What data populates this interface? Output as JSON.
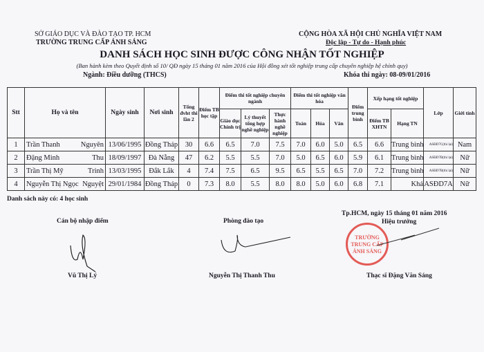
{
  "header": {
    "left_line1": "SỞ GIÁO DỤC VÀ ĐÀO TẠO TP. HCM",
    "left_line2": "TRƯỜNG TRUNG CẤP ÁNH SÁNG",
    "right_line1": "CỘNG HÒA XÃ HỘI CHỦ NGHĨA VIỆT NAM",
    "right_line2": "Độc lập - Tự do - Hạnh phúc"
  },
  "title": "DANH SÁCH HỌC SINH ĐƯỢC CÔNG NHẬN TỐT NGHIỆP",
  "subtitle": "(Ban hành kèm theo Quyết định số 10/ QĐ ngày 15 tháng 01 năm 2016 của Hội đồng xét tốt nghiệp trung cấp chuyên nghiệp hệ chính quy)",
  "major": "Ngành: Điều dưỡng (THCS)",
  "exam_date": "Khóa thi ngày: 08-09/01/2016",
  "table": {
    "headers": {
      "stt": "Stt",
      "name": "Họ và tên",
      "dob": "Ngày sinh",
      "pob": "Nơi sinh",
      "total": "Tổng đvht thi lần 2",
      "gpa": "Điểm TB học tập",
      "group_major": "Điểm thi tốt nghiệp chuyên ngành",
      "politics": "Giáo dục Chính trị",
      "theory": "Lý thuyết tổng hợp nghề nghiệp",
      "practice": "Thực hành nghề nghiệp",
      "group_culture": "Điểm thi tốt nghiệp văn hóa",
      "math": "Toán",
      "chem": "Hóa",
      "lit": "Văn",
      "avg": "Điểm trung bình",
      "group_rank": "Xếp hạng tốt nghiệp",
      "xhtn": "Điểm TB XHTN",
      "rank": "Hạng TN",
      "class": "Lớp",
      "gender": "Giới tính"
    },
    "rows": [
      {
        "stt": "1",
        "last": "Trần Thanh",
        "first": "Nguyên",
        "dob": "13/06/1995",
        "pob": "Đồng Tháp",
        "total": "30",
        "gpa": "6.6",
        "politics": "6.5",
        "theory": "7.0",
        "practice": "7.5",
        "math": "7.0",
        "chem": "6.0",
        "lit": "5.0",
        "avg": "6.5",
        "xhtn": "6.6",
        "rank": "Trung bình",
        "class": "ASĐD7C(thi lại)",
        "gender": "Nam"
      },
      {
        "stt": "2",
        "last": "Đặng Minh",
        "first": "Thu",
        "dob": "18/09/1997",
        "pob": "Đà Nẵng",
        "total": "47",
        "gpa": "6.2",
        "politics": "5.5",
        "theory": "5.5",
        "practice": "7.0",
        "math": "5.0",
        "chem": "6.5",
        "lit": "6.0",
        "avg": "5.9",
        "xhtn": "6.1",
        "rank": "Trung bình",
        "class": "ASĐD7B(thi lại)",
        "gender": "Nữ"
      },
      {
        "stt": "3",
        "last": "Trần Thị Mỹ",
        "first": "Trinh",
        "dob": "13/03/1995",
        "pob": "Đắk Lắk",
        "total": "4",
        "gpa": "7.4",
        "politics": "7.5",
        "theory": "6.5",
        "practice": "9.5",
        "math": "6.5",
        "chem": "5.5",
        "lit": "6.5",
        "avg": "7.0",
        "xhtn": "7.2",
        "rank": "Trung bình",
        "class": "ASĐD7B(thi lại)",
        "gender": "Nữ"
      },
      {
        "stt": "4",
        "last": "Nguyễn Thị Ngọc",
        "first": "Nguyệt",
        "dob": "29/01/1984",
        "pob": "Đồng Tháp",
        "total": "0",
        "gpa": "7.3",
        "politics": "8.0",
        "theory": "5.5",
        "practice": "8.0",
        "math": "8.0",
        "chem": "5.0",
        "lit": "6.0",
        "avg": "6.8",
        "xhtn": "7.1",
        "rank": "Khá",
        "class": "ASĐD7A",
        "gender": "Nữ"
      }
    ]
  },
  "summary": "Danh sách này có: 4 học sinh",
  "signatures": {
    "place_date": "Tp.HCM, ngày 15 tháng 01 năm 2016",
    "col1_role": "Cán bộ nhập điểm",
    "col1_name": "Vũ Thị Lý",
    "col2_role": "Phòng đào tạo",
    "col2_name": "Nguyễn Thị Thanh Thu",
    "col3_role": "Hiệu trưởng",
    "col3_name": "Thạc sĩ Đặng Văn Sáng"
  },
  "stamp_text": "TRƯỜNG TRUNG CẤP ÁNH SÁNG",
  "colors": {
    "stamp": "#e0403a",
    "ink": "#1a1a22",
    "paper": "#f7f6f9"
  }
}
